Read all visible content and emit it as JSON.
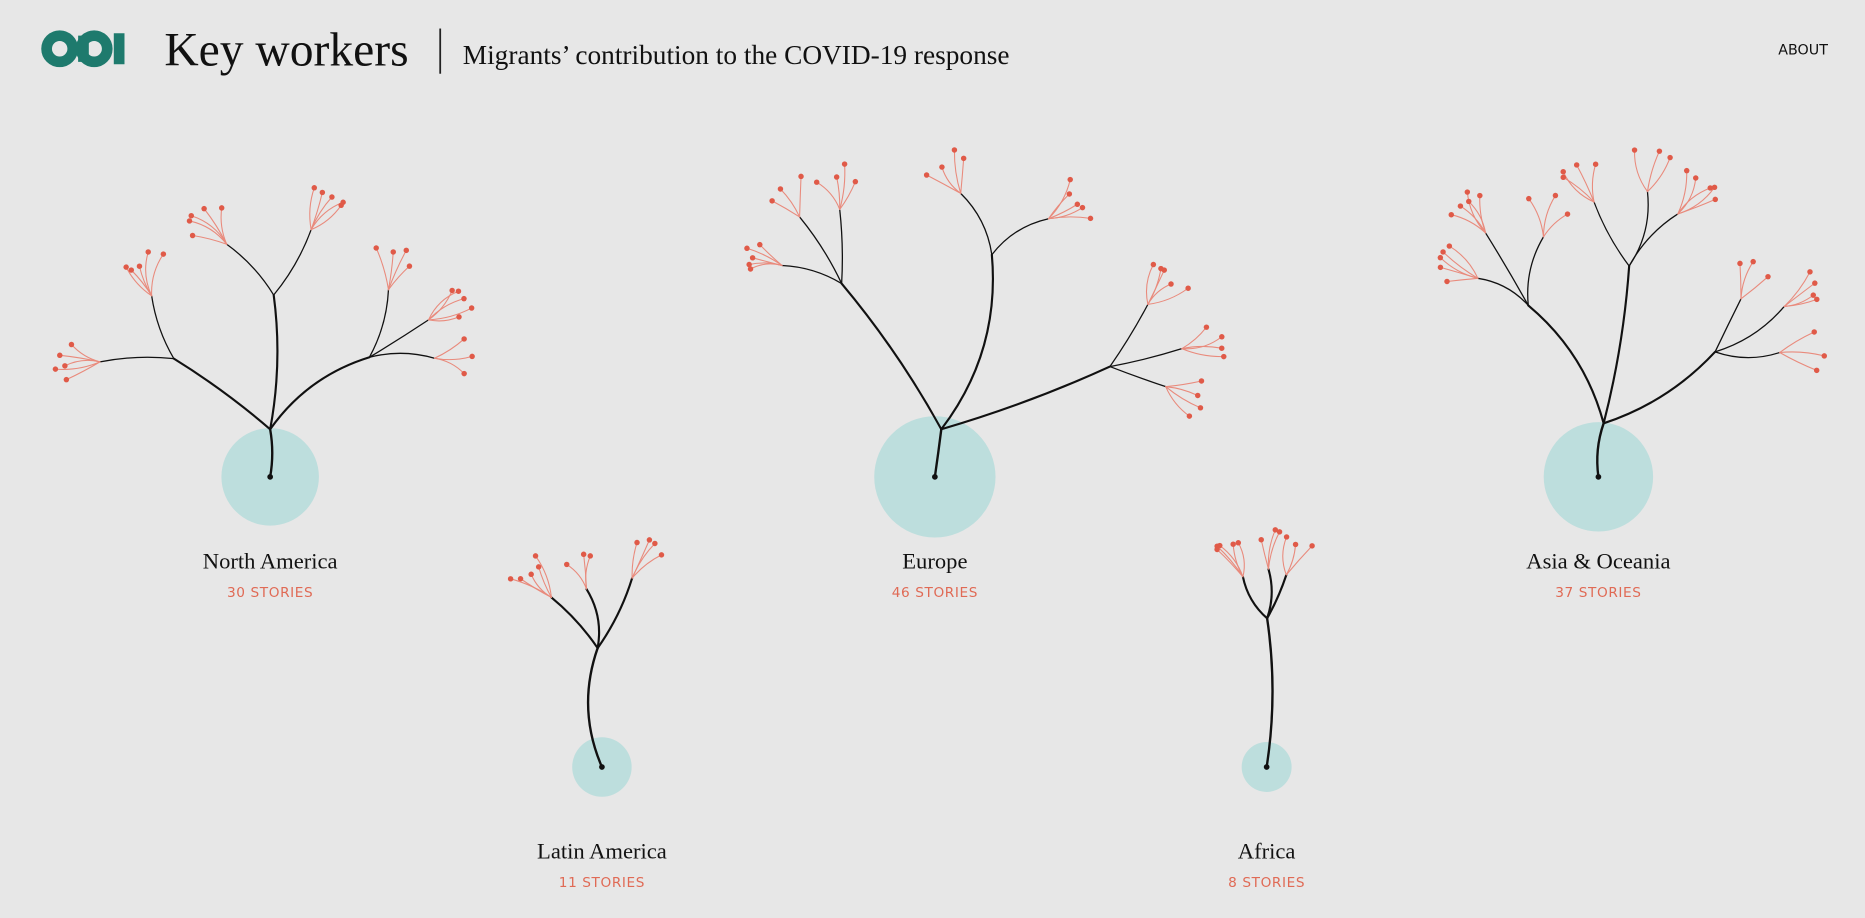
{
  "header": {
    "title": "Key workers",
    "subtitle": "Migrants’ contribution to the COVID-19 response",
    "nav": "ABOUT"
  },
  "regions": [
    {
      "name": "North America",
      "stories": "30 STORIES"
    },
    {
      "name": "Latin America",
      "stories": "11 STORIES"
    },
    {
      "name": "Europe",
      "stories": "46 STORIES"
    },
    {
      "name": "Africa",
      "stories": "8 STORIES"
    },
    {
      "name": "Asia & Oceania",
      "stories": "37 STORIES"
    }
  ]
}
